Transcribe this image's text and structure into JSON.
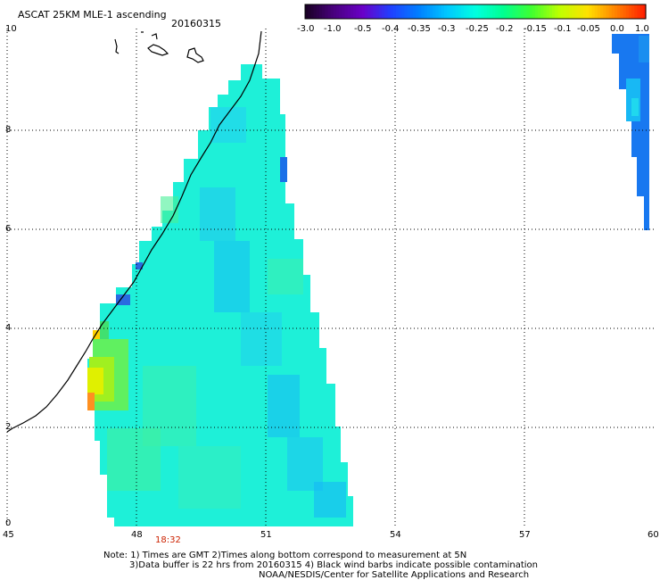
{
  "title": "ASCAT 25KM MLE-1 ascending",
  "date": "20160315",
  "colorbar": {
    "ticks": [
      "-3.0",
      "-1.0",
      "-0.5",
      "-0.4",
      "-0.35",
      "-0.3",
      "-0.25",
      "-0.2",
      "-0.15",
      "-0.1",
      "-0.05",
      "0.0",
      "1.0"
    ],
    "colors": [
      "#1a0026",
      "#4a0080",
      "#6a00c8",
      "#2040ff",
      "#0080ff",
      "#00c8ff",
      "#00ffe0",
      "#00ff90",
      "#40ff30",
      "#c0ff00",
      "#ffe000",
      "#ff8000",
      "#ff2000"
    ]
  },
  "axes": {
    "x_ticks": [
      "45",
      "48",
      "51",
      "54",
      "57",
      "60"
    ],
    "y_ticks": [
      "0",
      "2",
      "4",
      "6",
      "8",
      "10"
    ]
  },
  "time_label": "18:32",
  "notes": [
    "Note: 1) Times are GMT 2)Times along bottom correspond to measurement at 5N",
    "3)Data buffer is 22 hrs from 20160315 4) Black wind barbs indicate possible contamination",
    "NOAA/NESDIS/Center for Satellite Applications and Research"
  ]
}
